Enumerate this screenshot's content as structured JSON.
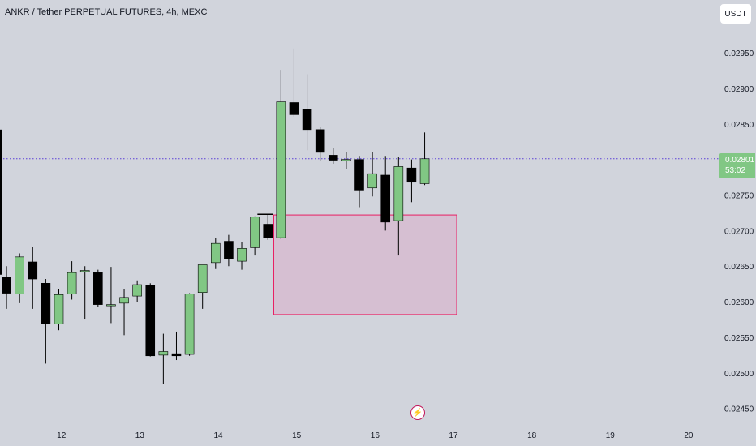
{
  "header": {
    "title": "ANKR / Tether PERPETUAL FUTURES, 4h, MEXC",
    "currency_button": "USDT"
  },
  "price_tag": {
    "price": "0.02801",
    "countdown": "53:02"
  },
  "colors": {
    "background": "#d1d4dc",
    "up": "#81c784",
    "down": "#000000",
    "zone_fill": "#d6bfd2",
    "zone_border": "#e91e63",
    "price_line": "#5b3fd6"
  },
  "icons": {
    "lightning": "lightning-icon"
  },
  "chart_data": {
    "type": "candlestick",
    "title": "ANKR / Tether PERPETUAL FUTURES, 4h, MEXC",
    "x_ticks": [
      {
        "label": "12",
        "index": 4.2
      },
      {
        "label": "13",
        "index": 10.2
      },
      {
        "label": "14",
        "index": 16.2
      },
      {
        "label": "15",
        "index": 22.2
      },
      {
        "label": "16",
        "index": 28.2
      },
      {
        "label": "17",
        "index": 34.2
      },
      {
        "label": "18",
        "index": 40.2
      },
      {
        "label": "19",
        "index": 46.2
      },
      {
        "label": "20",
        "index": 52.2
      }
    ],
    "y_ticks": [
      "0.02950",
      "0.02900",
      "0.02850",
      "0.02750",
      "0.02700",
      "0.02650",
      "0.02600",
      "0.02550",
      "0.02500",
      "0.02450"
    ],
    "ylim": [
      0.0242,
      0.0299
    ],
    "xlim": [
      -0.5,
      54.5
    ],
    "last_price": 0.02801,
    "zone": {
      "x_start": 20.45,
      "x_end": 34.45,
      "top": 0.02722,
      "bottom": 0.02582
    },
    "level_line": {
      "x_start": 19.2,
      "x_end": 20.4,
      "value": 0.02723
    },
    "candles": [
      {
        "o": 0.02634,
        "h": 0.0265,
        "l": 0.0259,
        "c": 0.02612
      },
      {
        "o": 0.02611,
        "h": 0.02668,
        "l": 0.02598,
        "c": 0.02663
      },
      {
        "o": 0.02656,
        "h": 0.02677,
        "l": 0.0259,
        "c": 0.02632
      },
      {
        "o": 0.02626,
        "h": 0.02632,
        "l": 0.02513,
        "c": 0.02569
      },
      {
        "o": 0.02569,
        "h": 0.02618,
        "l": 0.0256,
        "c": 0.0261
      },
      {
        "o": 0.02611,
        "h": 0.02657,
        "l": 0.02603,
        "c": 0.02641
      },
      {
        "o": 0.02644,
        "h": 0.0265,
        "l": 0.02575,
        "c": 0.02644
      },
      {
        "o": 0.02641,
        "h": 0.02645,
        "l": 0.02593,
        "c": 0.02596
      },
      {
        "o": 0.02596,
        "h": 0.02649,
        "l": 0.0257,
        "c": 0.02596
      },
      {
        "o": 0.02598,
        "h": 0.02618,
        "l": 0.02553,
        "c": 0.02606
      },
      {
        "o": 0.02608,
        "h": 0.0263,
        "l": 0.026,
        "c": 0.02624
      },
      {
        "o": 0.02623,
        "h": 0.02626,
        "l": 0.02523,
        "c": 0.02524
      },
      {
        "o": 0.02525,
        "h": 0.02555,
        "l": 0.02484,
        "c": 0.0253
      },
      {
        "o": 0.02527,
        "h": 0.02558,
        "l": 0.02518,
        "c": 0.02524
      },
      {
        "o": 0.02526,
        "h": 0.02612,
        "l": 0.02524,
        "c": 0.02611
      },
      {
        "o": 0.02613,
        "h": 0.02652,
        "l": 0.0259,
        "c": 0.02652
      },
      {
        "o": 0.02655,
        "h": 0.0269,
        "l": 0.02646,
        "c": 0.02682
      },
      {
        "o": 0.02685,
        "h": 0.02694,
        "l": 0.0265,
        "c": 0.0266
      },
      {
        "o": 0.02657,
        "h": 0.02684,
        "l": 0.02645,
        "c": 0.02675
      },
      {
        "o": 0.02676,
        "h": 0.0272,
        "l": 0.02665,
        "c": 0.02719
      },
      {
        "o": 0.02709,
        "h": 0.02723,
        "l": 0.02687,
        "c": 0.0269
      },
      {
        "o": 0.0269,
        "h": 0.02926,
        "l": 0.02688,
        "c": 0.02881
      },
      {
        "o": 0.0288,
        "h": 0.02956,
        "l": 0.0286,
        "c": 0.02863
      },
      {
        "o": 0.0287,
        "h": 0.0292,
        "l": 0.02813,
        "c": 0.02842
      },
      {
        "o": 0.02842,
        "h": 0.02846,
        "l": 0.02798,
        "c": 0.0281
      },
      {
        "o": 0.02806,
        "h": 0.02816,
        "l": 0.02794,
        "c": 0.02799
      },
      {
        "o": 0.02799,
        "h": 0.0281,
        "l": 0.02786,
        "c": 0.028
      },
      {
        "o": 0.028,
        "h": 0.02805,
        "l": 0.02733,
        "c": 0.02757
      },
      {
        "o": 0.0276,
        "h": 0.0281,
        "l": 0.02748,
        "c": 0.0278
      },
      {
        "o": 0.02778,
        "h": 0.02805,
        "l": 0.027,
        "c": 0.02712
      },
      {
        "o": 0.02714,
        "h": 0.02803,
        "l": 0.02665,
        "c": 0.0279
      },
      {
        "o": 0.02788,
        "h": 0.028,
        "l": 0.0274,
        "c": 0.02768
      },
      {
        "o": 0.02766,
        "h": 0.02838,
        "l": 0.02764,
        "c": 0.02801
      }
    ]
  }
}
